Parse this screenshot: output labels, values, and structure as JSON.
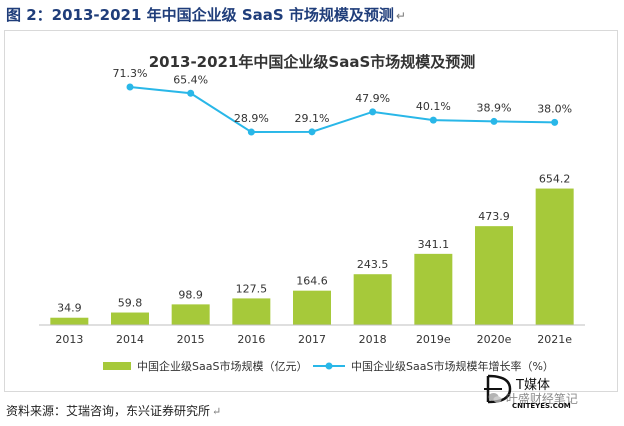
{
  "page": {
    "figure_title": "图 2：2013-2021 年中国企业级 SaaS 市场规模及预测",
    "source_text": "资料来源：艾瑞咨询，东兴证券研究所",
    "return_mark": "↵"
  },
  "watermark": {
    "brand": "T媒体",
    "subtext": "CNITEYES.COM",
    "note_text": "叶盛财经笔记",
    "note_icon": "wechat-icon"
  },
  "colors": {
    "bar": "#a6c93a",
    "line": "#29b7e8",
    "title": "#1f3d7a",
    "text": "#333333",
    "axis": "#bfbfbf"
  },
  "chart_data": {
    "type": "bar",
    "title": "2013-2021年中国企业级SaaS市场规模及预测",
    "categories": [
      "2013",
      "2014",
      "2015",
      "2016",
      "2017",
      "2018",
      "2019e",
      "2020e",
      "2021e"
    ],
    "series": [
      {
        "name": "中国企业级SaaS市场规模（亿元）",
        "type": "bar",
        "values": [
          34.9,
          59.8,
          98.9,
          127.5,
          164.6,
          243.5,
          341.1,
          473.9,
          654.2
        ],
        "labels": [
          "34.9",
          "59.8",
          "98.9",
          "127.5",
          "164.6",
          "243.5",
          "341.1",
          "473.9",
          "654.2"
        ]
      },
      {
        "name": "中国企业级SaaS市场规模年增长率（%）",
        "type": "line",
        "values": [
          null,
          71.3,
          65.4,
          28.9,
          29.1,
          47.9,
          40.1,
          38.9,
          38.0
        ],
        "labels": [
          "",
          "71.3%",
          "65.4%",
          "28.9%",
          "29.1%",
          "47.9%",
          "40.1%",
          "38.9%",
          "38.0%"
        ]
      }
    ],
    "bar_ylim": [
      0,
      700
    ],
    "line_ylim": [
      0,
      80
    ],
    "legend_position": "bottom",
    "grid": false
  }
}
